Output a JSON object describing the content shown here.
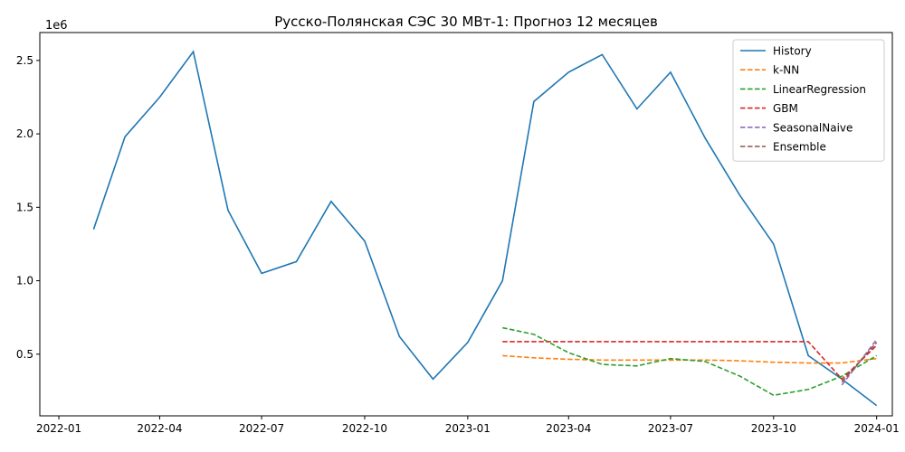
{
  "chart_data": {
    "type": "line",
    "title": "Русско-Полянская СЭС 30 МВт-1: Прогноз 12 месяцев",
    "y_multiplier_label": "1e6",
    "xlim": [
      "2021-12-15",
      "2024-01-15"
    ],
    "ylim": [
      0.08,
      2.69
    ],
    "x_ticks": [
      "2022-01",
      "2022-04",
      "2022-07",
      "2022-10",
      "2023-01",
      "2023-04",
      "2023-07",
      "2023-10",
      "2024-01"
    ],
    "y_ticks": [
      0.5,
      1.0,
      1.5,
      2.0,
      2.5
    ],
    "y_tick_labels": [
      "0.5",
      "1.0",
      "1.5",
      "2.0",
      "2.5"
    ],
    "legend_position": "top-right",
    "grid": false,
    "series": [
      {
        "name": "History",
        "color": "#1f77b4",
        "style": "solid",
        "x": [
          "2022-02-01",
          "2022-03-01",
          "2022-04-01",
          "2022-05-01",
          "2022-06-01",
          "2022-07-01",
          "2022-08-01",
          "2022-09-01",
          "2022-10-01",
          "2022-11-01",
          "2022-12-01",
          "2023-01-01",
          "2023-02-01",
          "2023-03-01",
          "2023-04-01",
          "2023-05-01",
          "2023-06-01",
          "2023-07-01",
          "2023-08-01",
          "2023-09-01",
          "2023-10-01",
          "2023-11-01",
          "2023-12-01",
          "2024-01-01"
        ],
        "y": [
          1.35,
          1.98,
          2.25,
          2.56,
          1.48,
          1.05,
          1.13,
          1.54,
          1.27,
          0.62,
          0.33,
          0.58,
          1.0,
          2.22,
          2.42,
          2.54,
          2.17,
          2.42,
          1.97,
          1.58,
          1.25,
          0.49,
          0.33,
          0.15
        ]
      },
      {
        "name": "k-NN",
        "color": "#ff7f0e",
        "style": "dashed",
        "x": [
          "2023-02-01",
          "2023-03-01",
          "2023-04-01",
          "2023-05-01",
          "2023-06-01",
          "2023-07-01",
          "2023-08-01",
          "2023-09-01",
          "2023-10-01",
          "2023-11-01",
          "2023-12-01",
          "2024-01-01"
        ],
        "y": [
          0.49,
          0.475,
          0.465,
          0.46,
          0.46,
          0.46,
          0.46,
          0.455,
          0.445,
          0.44,
          0.44,
          0.47
        ]
      },
      {
        "name": "LinearRegression",
        "color": "#2ca02c",
        "style": "dashed",
        "x": [
          "2023-02-01",
          "2023-03-01",
          "2023-04-01",
          "2023-05-01",
          "2023-06-01",
          "2023-07-01",
          "2023-08-01",
          "2023-09-01",
          "2023-10-01",
          "2023-11-01",
          "2023-12-01",
          "2024-01-01"
        ],
        "y": [
          0.68,
          0.635,
          0.51,
          0.43,
          0.42,
          0.47,
          0.45,
          0.35,
          0.22,
          0.26,
          0.35,
          0.49
        ]
      },
      {
        "name": "GBM",
        "color": "#d62728",
        "style": "dashed",
        "x": [
          "2023-02-01",
          "2023-03-01",
          "2023-04-01",
          "2023-05-01",
          "2023-06-01",
          "2023-07-01",
          "2023-08-01",
          "2023-09-01",
          "2023-10-01",
          "2023-11-01",
          "2023-12-01",
          "2024-01-01"
        ],
        "y": [
          0.585,
          0.585,
          0.585,
          0.585,
          0.585,
          0.585,
          0.585,
          0.585,
          0.585,
          0.585,
          0.33,
          0.56
        ]
      },
      {
        "name": "SeasonalNaive",
        "color": "#9467bd",
        "style": "dashed",
        "x": [
          "2023-12-01",
          "2024-01-01"
        ],
        "y": [
          0.29,
          0.6
        ]
      },
      {
        "name": "Ensemble",
        "color": "#8c564b",
        "style": "dashed",
        "x": [
          "2023-12-01",
          "2024-01-01"
        ],
        "y": [
          0.31,
          0.58
        ]
      }
    ]
  }
}
